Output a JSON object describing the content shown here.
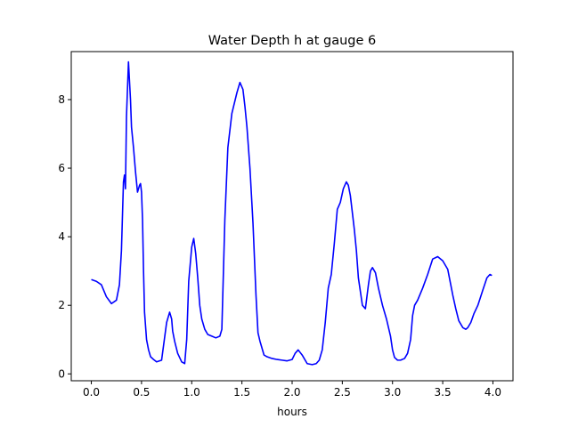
{
  "chart_data": {
    "type": "line",
    "title": "Water Depth h at gauge 6",
    "xlabel": "hours",
    "ylabel": "",
    "xlim": [
      -0.2,
      4.2
    ],
    "ylim": [
      -0.2,
      9.4
    ],
    "grid": false,
    "x_ticks": [
      {
        "value": 0.0,
        "label": "0.0"
      },
      {
        "value": 0.5,
        "label": "0.5"
      },
      {
        "value": 1.0,
        "label": "1.0"
      },
      {
        "value": 1.5,
        "label": "1.5"
      },
      {
        "value": 2.0,
        "label": "2.0"
      },
      {
        "value": 2.5,
        "label": "2.5"
      },
      {
        "value": 3.0,
        "label": "3.0"
      },
      {
        "value": 3.5,
        "label": "3.5"
      },
      {
        "value": 4.0,
        "label": "4.0"
      }
    ],
    "y_ticks": [
      {
        "value": 0,
        "label": "0"
      },
      {
        "value": 2,
        "label": "2"
      },
      {
        "value": 4,
        "label": "4"
      },
      {
        "value": 6,
        "label": "6"
      },
      {
        "value": 8,
        "label": "8"
      }
    ],
    "series": [
      {
        "color": "#0000ff",
        "x": [
          0.0,
          0.05,
          0.1,
          0.15,
          0.2,
          0.25,
          0.28,
          0.3,
          0.32,
          0.33,
          0.34,
          0.35,
          0.37,
          0.39,
          0.4,
          0.42,
          0.44,
          0.46,
          0.48,
          0.49,
          0.5,
          0.51,
          0.52,
          0.53,
          0.55,
          0.57,
          0.59,
          0.62,
          0.65,
          0.7,
          0.75,
          0.78,
          0.8,
          0.81,
          0.83,
          0.86,
          0.9,
          0.93,
          0.95,
          0.97,
          1.0,
          1.02,
          1.04,
          1.06,
          1.08,
          1.1,
          1.13,
          1.16,
          1.2,
          1.24,
          1.28,
          1.3,
          1.33,
          1.36,
          1.4,
          1.45,
          1.48,
          1.51,
          1.53,
          1.55,
          1.58,
          1.61,
          1.64,
          1.66,
          1.68,
          1.7,
          1.72,
          1.75,
          1.8,
          1.85,
          1.9,
          1.95,
          2.0,
          2.03,
          2.06,
          2.1,
          2.15,
          2.2,
          2.24,
          2.27,
          2.3,
          2.33,
          2.36,
          2.39,
          2.42,
          2.45,
          2.48,
          2.51,
          2.54,
          2.56,
          2.58,
          2.6,
          2.62,
          2.64,
          2.66,
          2.7,
          2.73,
          2.76,
          2.78,
          2.8,
          2.83,
          2.86,
          2.9,
          2.94,
          2.98,
          3.0,
          3.02,
          3.05,
          3.08,
          3.12,
          3.15,
          3.18,
          3.2,
          3.22,
          3.25,
          3.3,
          3.35,
          3.4,
          3.45,
          3.5,
          3.55,
          3.58,
          3.6,
          3.63,
          3.66,
          3.7,
          3.73,
          3.75,
          3.78,
          3.81,
          3.85,
          3.9,
          3.94,
          3.97,
          3.99
        ],
        "y": [
          2.75,
          2.7,
          2.6,
          2.25,
          2.05,
          2.15,
          2.6,
          3.6,
          5.6,
          5.8,
          5.4,
          7.5,
          9.1,
          8.0,
          7.2,
          6.6,
          5.9,
          5.3,
          5.5,
          5.55,
          5.3,
          4.5,
          3.0,
          1.8,
          1.0,
          0.7,
          0.5,
          0.42,
          0.35,
          0.4,
          1.5,
          1.8,
          1.6,
          1.25,
          0.95,
          0.6,
          0.35,
          0.3,
          1.0,
          2.7,
          3.7,
          3.95,
          3.5,
          2.8,
          2.0,
          1.6,
          1.3,
          1.15,
          1.1,
          1.05,
          1.1,
          1.3,
          4.5,
          6.6,
          7.6,
          8.2,
          8.5,
          8.3,
          7.8,
          7.2,
          6.0,
          4.4,
          2.3,
          1.2,
          0.95,
          0.75,
          0.55,
          0.5,
          0.45,
          0.42,
          0.4,
          0.38,
          0.42,
          0.6,
          0.7,
          0.55,
          0.3,
          0.27,
          0.3,
          0.4,
          0.7,
          1.5,
          2.5,
          2.9,
          3.8,
          4.8,
          5.0,
          5.4,
          5.6,
          5.5,
          5.2,
          4.7,
          4.2,
          3.6,
          2.8,
          2.0,
          1.9,
          2.6,
          3.0,
          3.1,
          2.95,
          2.5,
          2.0,
          1.6,
          1.1,
          0.7,
          0.48,
          0.4,
          0.4,
          0.45,
          0.6,
          1.0,
          1.7,
          2.0,
          2.15,
          2.5,
          2.9,
          3.35,
          3.42,
          3.3,
          3.05,
          2.6,
          2.3,
          1.9,
          1.55,
          1.35,
          1.3,
          1.35,
          1.5,
          1.75,
          2.0,
          2.45,
          2.8,
          2.9,
          2.87
        ]
      }
    ]
  }
}
